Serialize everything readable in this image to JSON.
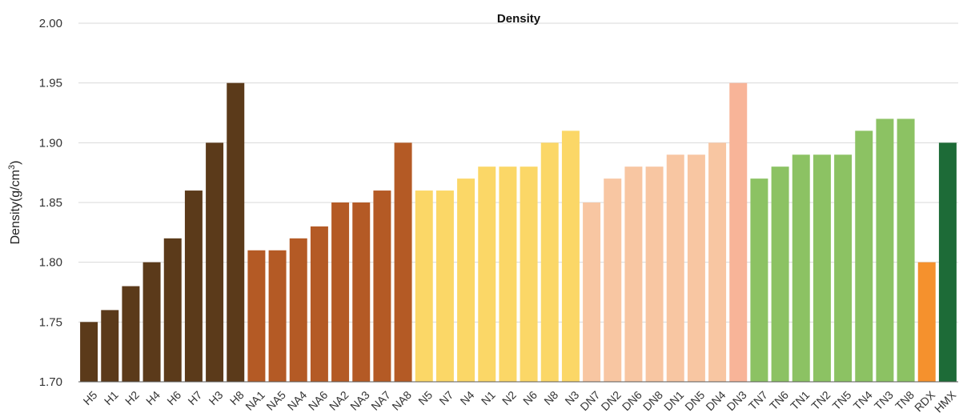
{
  "chart_data": {
    "type": "bar",
    "title": "Density",
    "ylabel_main": "Density(g/cm",
    "ylabel_sup": "3",
    "ylabel_tail": ")",
    "xlabel": "",
    "ylim": [
      1.7,
      2.0
    ],
    "yticks": [
      "1.70",
      "1.75",
      "1.80",
      "1.85",
      "1.90",
      "1.95",
      "2.00"
    ],
    "grid": true,
    "categories": [
      "H5",
      "H1",
      "H2",
      "H4",
      "H6",
      "H7",
      "H3",
      "H8",
      "NA1",
      "NA5",
      "NA4",
      "NA6",
      "NA2",
      "NA3",
      "NA7",
      "NA8",
      "N5",
      "N7",
      "N4",
      "N1",
      "N2",
      "N6",
      "N8",
      "N3",
      "DN7",
      "DN2",
      "DN6",
      "DN8",
      "DN1",
      "DN5",
      "DN4",
      "DN3",
      "TN7",
      "TN6",
      "TN1",
      "TN2",
      "TN5",
      "TN4",
      "TN3",
      "TN8",
      "RDX",
      "HMX"
    ],
    "values": [
      1.75,
      1.76,
      1.78,
      1.8,
      1.82,
      1.86,
      1.9,
      1.95,
      1.81,
      1.81,
      1.82,
      1.83,
      1.85,
      1.85,
      1.86,
      1.9,
      1.86,
      1.86,
      1.87,
      1.88,
      1.88,
      1.88,
      1.9,
      1.91,
      1.85,
      1.87,
      1.88,
      1.88,
      1.89,
      1.89,
      1.9,
      1.95,
      1.87,
      1.88,
      1.89,
      1.89,
      1.89,
      1.91,
      1.92,
      1.92,
      1.8,
      1.9
    ],
    "colors": [
      "#5b3a1a",
      "#5b3a1a",
      "#5b3a1a",
      "#5b3a1a",
      "#5b3a1a",
      "#5b3a1a",
      "#5b3a1a",
      "#5b3a1a",
      "#b45a25",
      "#b45a25",
      "#b45a25",
      "#b45a25",
      "#b45a25",
      "#b45a25",
      "#b45a25",
      "#b45a25",
      "#fbd767",
      "#fbd767",
      "#fbd767",
      "#fbd767",
      "#fbd767",
      "#fbd767",
      "#fbd767",
      "#fbd767",
      "#f8c6a2",
      "#f8c6a2",
      "#f8c6a2",
      "#f8c6a2",
      "#f8c6a2",
      "#f8c6a2",
      "#f8c6a2",
      "#f8b498",
      "#8cc263",
      "#8cc263",
      "#8cc263",
      "#8cc263",
      "#8cc263",
      "#8cc263",
      "#8cc263",
      "#8cc263",
      "#f5912d",
      "#1d6b37"
    ]
  }
}
